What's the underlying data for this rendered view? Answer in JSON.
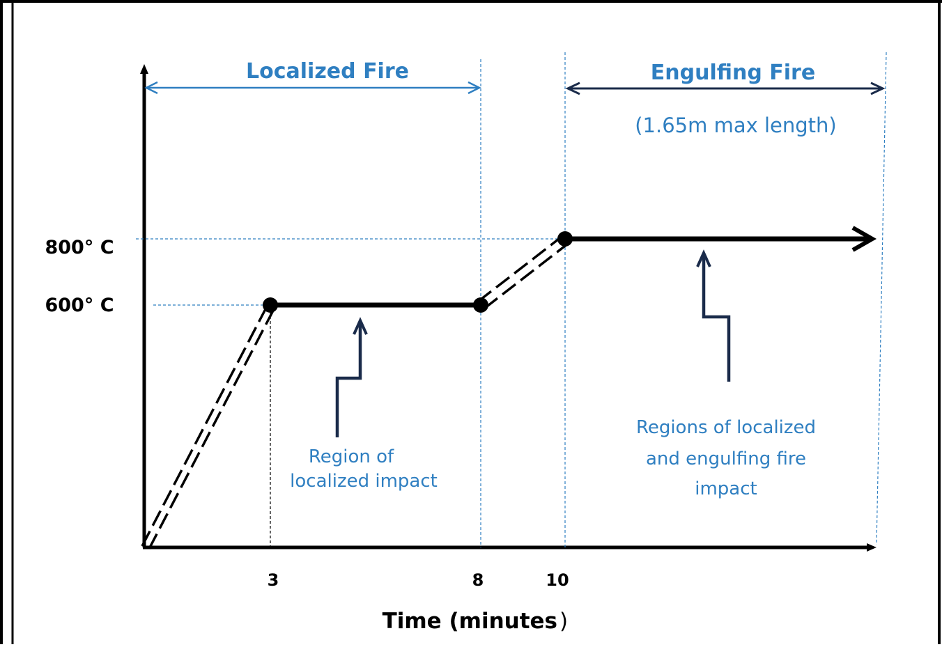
{
  "diagram": {
    "y_labels": {
      "t800": "800° C",
      "t600": "600° C"
    },
    "x_ticks": {
      "t3": "3",
      "t8": "8",
      "t10": "10"
    },
    "x_axis_title": {
      "main": "Time (minutes",
      "close": ")"
    },
    "phases": {
      "localized": "Localized Fire",
      "engulfing": "Engulfing Fire",
      "engulfing_note": "(1.65m max length)"
    },
    "regions": {
      "localized_line1": "Region of",
      "localized_line2": "localized impact",
      "engulfing_line1": "Regions of localized",
      "engulfing_line2": "and engulfing  fire",
      "engulfing_line3": "impact"
    },
    "colors": {
      "accent_blue": "#2f7fc1",
      "line_black": "#000000",
      "guide_navy": "#1a2b4a"
    }
  }
}
